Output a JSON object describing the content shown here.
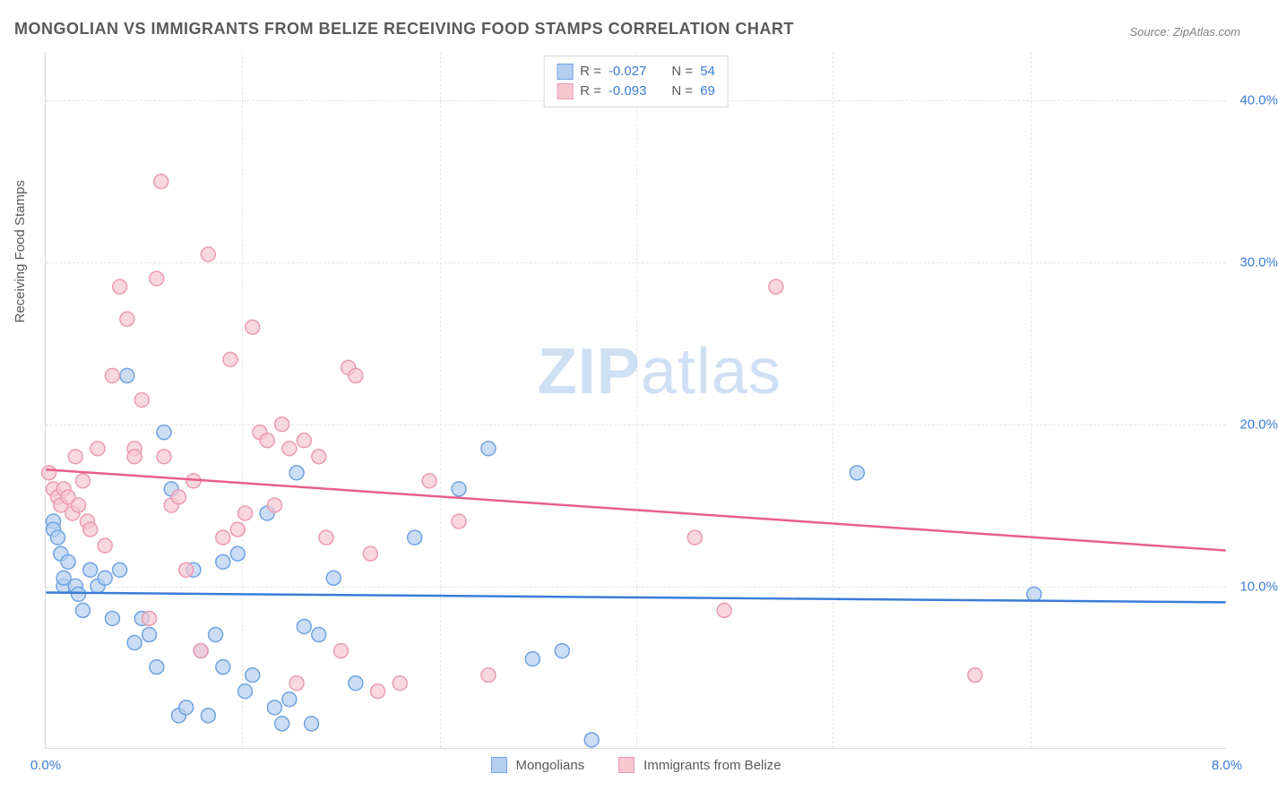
{
  "title": "MONGOLIAN VS IMMIGRANTS FROM BELIZE RECEIVING FOOD STAMPS CORRELATION CHART",
  "source": "Source: ZipAtlas.com",
  "ylabel": "Receiving Food Stamps",
  "watermark_bold": "ZIP",
  "watermark_rest": "atlas",
  "chart": {
    "type": "scatter",
    "xlim": [
      0,
      8
    ],
    "ylim": [
      0,
      43
    ],
    "xticks": [
      0,
      8
    ],
    "xtick_labels": [
      "0.0%",
      "8.0%"
    ],
    "yticks": [
      10,
      20,
      30,
      40
    ],
    "ytick_labels": [
      "10.0%",
      "20.0%",
      "30.0%",
      "40.0%"
    ],
    "vgrid_x": [
      1.33,
      2.67,
      4.0,
      5.33,
      6.67
    ],
    "grid_color": "#e4e4e4",
    "background_color": "#ffffff",
    "series": [
      {
        "name": "Mongolians",
        "color_fill": "#b5cff0",
        "color_stroke": "#6ea3e2",
        "marker_radius": 8,
        "marker_opacity": 0.7,
        "R": "-0.027",
        "N": "54",
        "trend_color": "#3a7cd6",
        "trend_width": 2.5,
        "trend": {
          "y_at_x0": 9.6,
          "y_at_xmax": 9.0
        },
        "points": [
          [
            0.05,
            14.0
          ],
          [
            0.05,
            13.5
          ],
          [
            0.08,
            13.0
          ],
          [
            0.1,
            12.0
          ],
          [
            0.12,
            10.0
          ],
          [
            0.12,
            10.5
          ],
          [
            0.15,
            11.5
          ],
          [
            0.2,
            10.0
          ],
          [
            0.22,
            9.5
          ],
          [
            0.25,
            8.5
          ],
          [
            0.3,
            11.0
          ],
          [
            0.35,
            10.0
          ],
          [
            0.4,
            10.5
          ],
          [
            0.45,
            8.0
          ],
          [
            0.5,
            11.0
          ],
          [
            0.55,
            23.0
          ],
          [
            0.6,
            6.5
          ],
          [
            0.65,
            8.0
          ],
          [
            0.7,
            7.0
          ],
          [
            0.75,
            5.0
          ],
          [
            0.8,
            19.5
          ],
          [
            0.85,
            16.0
          ],
          [
            0.9,
            2.0
          ],
          [
            0.95,
            2.5
          ],
          [
            1.0,
            11.0
          ],
          [
            1.05,
            6.0
          ],
          [
            1.1,
            2.0
          ],
          [
            1.15,
            7.0
          ],
          [
            1.2,
            11.5
          ],
          [
            1.2,
            5.0
          ],
          [
            1.3,
            12.0
          ],
          [
            1.35,
            3.5
          ],
          [
            1.4,
            4.5
          ],
          [
            1.5,
            14.5
          ],
          [
            1.55,
            2.5
          ],
          [
            1.6,
            1.5
          ],
          [
            1.65,
            3.0
          ],
          [
            1.7,
            17.0
          ],
          [
            1.75,
            7.5
          ],
          [
            1.8,
            1.5
          ],
          [
            1.85,
            7.0
          ],
          [
            1.95,
            10.5
          ],
          [
            2.1,
            4.0
          ],
          [
            2.5,
            13.0
          ],
          [
            2.8,
            16.0
          ],
          [
            3.0,
            18.5
          ],
          [
            3.3,
            5.5
          ],
          [
            3.5,
            6.0
          ],
          [
            3.7,
            0.5
          ],
          [
            5.5,
            17.0
          ],
          [
            6.7,
            9.5
          ]
        ]
      },
      {
        "name": "Immigrants from Belize",
        "color_fill": "#f6c6d1",
        "color_stroke": "#ea9ab2",
        "marker_radius": 8,
        "marker_opacity": 0.7,
        "R": "-0.093",
        "N": "69",
        "trend_color": "#e85f8a",
        "trend_width": 2.5,
        "trend": {
          "y_at_x0": 17.2,
          "y_at_xmax": 12.2
        },
        "points": [
          [
            0.02,
            17.0
          ],
          [
            0.05,
            16.0
          ],
          [
            0.08,
            15.5
          ],
          [
            0.1,
            15.0
          ],
          [
            0.12,
            16.0
          ],
          [
            0.15,
            15.5
          ],
          [
            0.18,
            14.5
          ],
          [
            0.2,
            18.0
          ],
          [
            0.22,
            15.0
          ],
          [
            0.25,
            16.5
          ],
          [
            0.28,
            14.0
          ],
          [
            0.3,
            13.5
          ],
          [
            0.35,
            18.5
          ],
          [
            0.4,
            12.5
          ],
          [
            0.45,
            23.0
          ],
          [
            0.5,
            28.5
          ],
          [
            0.55,
            26.5
          ],
          [
            0.6,
            18.5
          ],
          [
            0.6,
            18.0
          ],
          [
            0.65,
            21.5
          ],
          [
            0.7,
            8.0
          ],
          [
            0.75,
            29.0
          ],
          [
            0.78,
            35.0
          ],
          [
            0.8,
            18.0
          ],
          [
            0.85,
            15.0
          ],
          [
            0.9,
            15.5
          ],
          [
            0.95,
            11.0
          ],
          [
            1.0,
            16.5
          ],
          [
            1.05,
            6.0
          ],
          [
            1.1,
            30.5
          ],
          [
            1.2,
            13.0
          ],
          [
            1.25,
            24.0
          ],
          [
            1.3,
            13.5
          ],
          [
            1.35,
            14.5
          ],
          [
            1.4,
            26.0
          ],
          [
            1.45,
            19.5
          ],
          [
            1.5,
            19.0
          ],
          [
            1.55,
            15.0
          ],
          [
            1.6,
            20.0
          ],
          [
            1.65,
            18.5
          ],
          [
            1.7,
            4.0
          ],
          [
            1.75,
            19.0
          ],
          [
            1.85,
            18.0
          ],
          [
            1.9,
            13.0
          ],
          [
            2.0,
            6.0
          ],
          [
            2.05,
            23.5
          ],
          [
            2.1,
            23.0
          ],
          [
            2.2,
            12.0
          ],
          [
            2.25,
            3.5
          ],
          [
            2.4,
            4.0
          ],
          [
            2.6,
            16.5
          ],
          [
            2.8,
            14.0
          ],
          [
            3.0,
            4.5
          ],
          [
            4.4,
            13.0
          ],
          [
            4.95,
            28.5
          ],
          [
            4.6,
            8.5
          ],
          [
            6.3,
            4.5
          ]
        ]
      }
    ]
  },
  "legend_top": {
    "r_label": "R =",
    "n_label": "N ="
  },
  "legend_bottom": [
    {
      "swatch_fill": "#b5cff0",
      "swatch_stroke": "#6ea3e2",
      "label": "Mongolians"
    },
    {
      "swatch_fill": "#f6c6d1",
      "swatch_stroke": "#ea9ab2",
      "label": "Immigrants from Belize"
    }
  ]
}
